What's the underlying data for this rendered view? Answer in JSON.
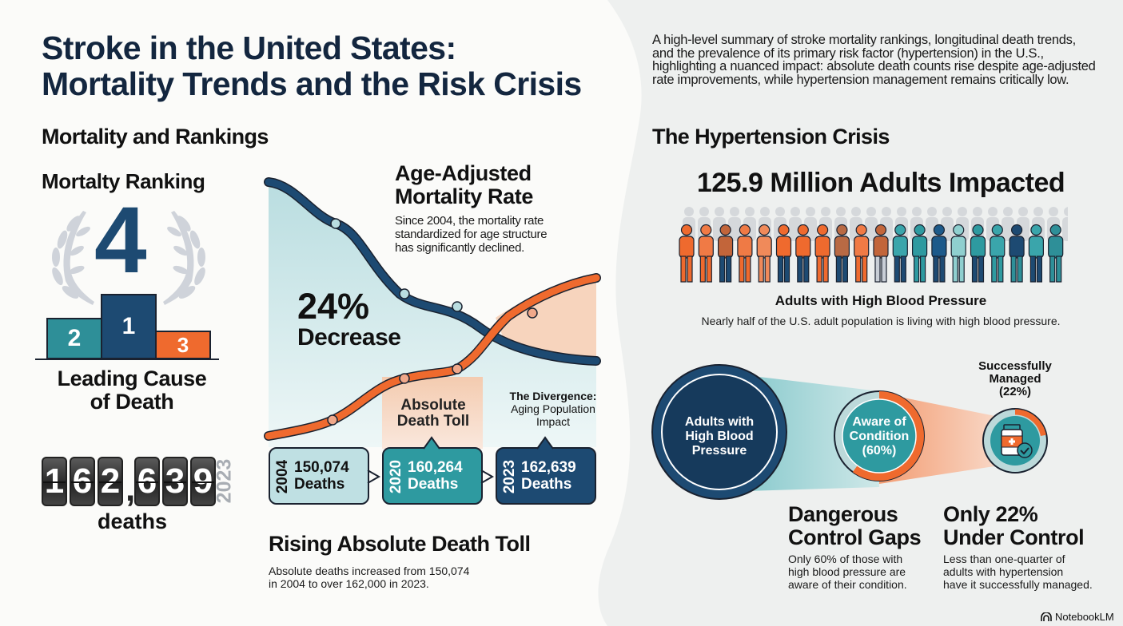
{
  "header": {
    "title_line1": "Stroke in the United States:",
    "title_line2": "Mortality Trends and the Risk Crisis",
    "summary": "A high-level summary of stroke mortality rankings, longitudinal death trends, and the prevalence of its primary risk factor (hypertension) in the U.S., highlighting a nuanced impact: absolute death counts rise despite age-adjusted rate improvements, while hypertension management remains critically low."
  },
  "colors": {
    "navy": "#1d4a72",
    "teal": "#2e9aa0",
    "orange": "#ef6a2e",
    "light_teal": "#b9dde0",
    "peach": "#f6cdb3",
    "dark_text": "#13263f"
  },
  "mortality": {
    "section_title": "Mortality and Rankings",
    "ranking": {
      "title": "Mortalty Ranking",
      "rank": "4",
      "podium": [
        "2",
        "1",
        "3"
      ],
      "caption_line1": "Leading Cause",
      "caption_line2": "of Death",
      "laurel_icon": "laurel-wreath-icon"
    },
    "counter": {
      "digits": [
        "1",
        "6",
        "2",
        "6",
        "3",
        "9"
      ],
      "year": "2023",
      "label": "deaths"
    },
    "chart": {
      "title_line1": "Age-Adjusted",
      "title_line2": "Mortality Rate",
      "description_lines": [
        "Since 2004, the mortality rate",
        "standardized for age structure",
        "has significantly declined."
      ],
      "stat_value": "24%",
      "stat_label": "Decrease",
      "absolute_label_line1": "Absolute",
      "absolute_label_line2": "Death Toll",
      "divergence_bold": "The Divergence:",
      "divergence_line1": "Aging Population",
      "divergence_line2": "Impact",
      "boxes": [
        {
          "year": "2004",
          "value": "150,074",
          "unit": "Deaths"
        },
        {
          "year": "2020",
          "value": "160,264",
          "unit": "Deaths"
        },
        {
          "year": "2023",
          "value": "162,639",
          "unit": "Deaths"
        }
      ]
    },
    "rising": {
      "title": "Rising Absolute Death Toll",
      "desc_line1": "Absolute deaths increased from 150,074",
      "desc_line2": "in 2004 to over 162,000 in 2023."
    }
  },
  "chart_data": {
    "type": "line",
    "title": "Age-Adjusted Mortality Rate vs Absolute Death Toll",
    "xlabel": "",
    "ylabel": "",
    "x": [
      "2004",
      "2020",
      "2023"
    ],
    "series": [
      {
        "name": "Age-adjusted mortality rate (relative index)",
        "trend": "decreasing",
        "change": "-24%"
      },
      {
        "name": "Absolute deaths",
        "values": [
          150074,
          160264,
          162639
        ]
      }
    ],
    "annotations": [
      "24% Decrease",
      "Absolute Death Toll",
      "The Divergence: Aging Population Impact"
    ],
    "grid": false
  },
  "hypertension": {
    "section_title": "The Hypertension Crisis",
    "headline": "125.9 Million Adults Impacted",
    "people_icon": "people-crowd-icon",
    "label": "Adults with High Blood Pressure",
    "desc": "Nearly half of the U.S. adult population is living with high blood pressure.",
    "funnel": {
      "stage1_lines": [
        "Adults with",
        "High Blood",
        "Pressure"
      ],
      "stage2_lines": [
        "Aware of",
        "Condition",
        "(60%)"
      ],
      "stage2_pct": 60,
      "stage3_lines": [
        "Successfully",
        "Managed",
        "(22%)"
      ],
      "stage3_pct": 22,
      "stage3_icon": "medicine-bottle-check-icon"
    },
    "gaps": {
      "title_line1": "Dangerous",
      "title_line2": "Control Gaps",
      "desc_lines": [
        "Only 60% of those with",
        "high blood pressure are",
        "aware of their condition."
      ]
    },
    "control": {
      "title_line1": "Only 22%",
      "title_line2": "Under Control",
      "desc_lines": [
        "Less than one-quarter of",
        "adults with hypertension",
        "have it successfully managed."
      ]
    }
  },
  "footer": {
    "brand": "NotebookLM"
  }
}
